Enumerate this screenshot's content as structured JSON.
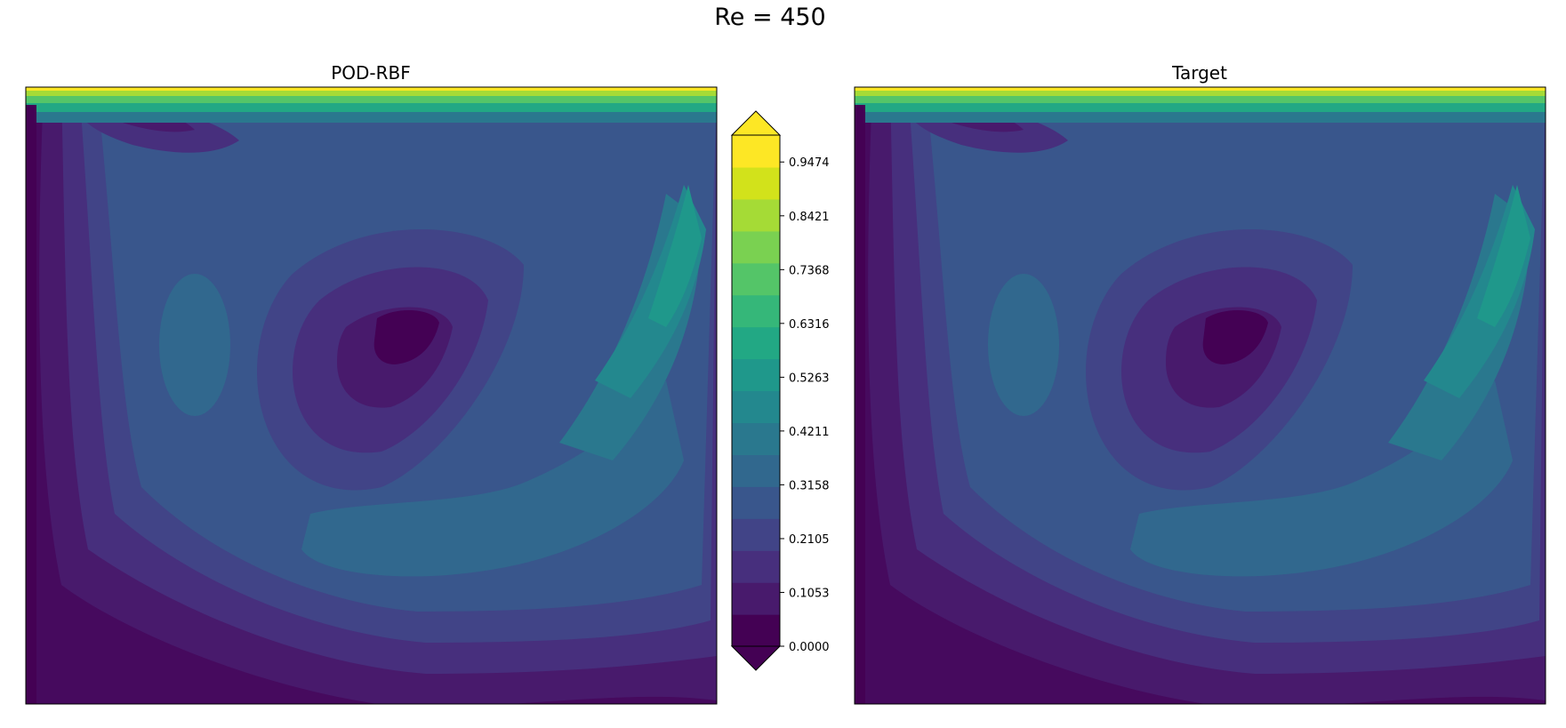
{
  "suptitle": "Re = 450",
  "chart_data": {
    "type": "contourf",
    "panels": [
      {
        "title": "POD-RBF"
      },
      {
        "title": "Target"
      }
    ],
    "colorbar": {
      "colormap": "viridis",
      "min": 0.0,
      "max": 1.0,
      "extend": "both",
      "levels": 20,
      "ticks": [
        0.0,
        0.1053,
        0.2105,
        0.3158,
        0.4211,
        0.5263,
        0.6316,
        0.7368,
        0.8421,
        0.9474
      ],
      "tick_labels": [
        "0.0000",
        "0.1053",
        "0.2105",
        "0.3158",
        "0.4211",
        "0.5263",
        "0.6316",
        "0.7368",
        "0.8421",
        "0.9474"
      ],
      "colors": [
        "#440154",
        "#481a6c",
        "#472f7d",
        "#414487",
        "#39568c",
        "#31688e",
        "#2a788e",
        "#23888e",
        "#1f988b",
        "#22a884",
        "#35b779",
        "#54c568",
        "#7ad151",
        "#a5db36",
        "#d2e21b",
        "#fde725"
      ]
    }
  }
}
